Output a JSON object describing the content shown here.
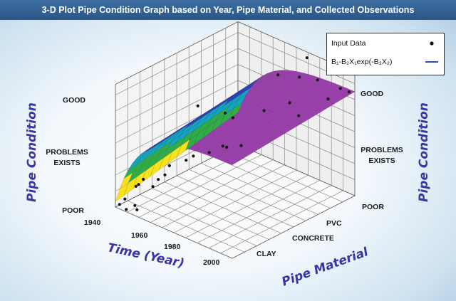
{
  "chart_data": {
    "type": "surface3d",
    "title": "3-D Plot Pipe Condition Graph based on Year, Pipe Material, and Collected Observations",
    "x_axis": {
      "label": "Time (Year)",
      "ticks": [
        "1940",
        "1960",
        "1980",
        "2000"
      ],
      "range": [
        1940,
        2010
      ]
    },
    "y_axis": {
      "label": "Pipe Material",
      "ticks": [
        "CLAY",
        "CONCRETE",
        "PVC"
      ],
      "note": "categorical"
    },
    "z_axis": {
      "label": "Pipe Condition",
      "ticks": [
        "POOR",
        "PROBLEMS EXISTS",
        "GOOD"
      ],
      "range": [
        0,
        1
      ]
    },
    "legend": {
      "placement": "top-right",
      "entries": [
        {
          "name": "Input Data",
          "marker": "dot"
        },
        {
          "name": "B₁-B₂X₁exp(-B₃X₂)",
          "marker": "line"
        }
      ]
    },
    "surface": {
      "model": "B₁-B₂X₁exp(-B₃X₂)",
      "condition_at_corners": {
        "1940_clay": 0.05,
        "1940_pvc": 0.3,
        "2010_clay": 0.88,
        "2010_pvc": 0.98
      },
      "colorscale": [
        "#d11f1f",
        "#f7e21b",
        "#2fae47",
        "#11a6c3",
        "#2a44c2",
        "#9c3fae"
      ]
    },
    "observations": [
      {
        "year": 1941,
        "material": 0.02,
        "condition": 0.02
      },
      {
        "year": 1942,
        "material": 0.05,
        "condition": 0.06
      },
      {
        "year": 1945,
        "material": 0.02,
        "condition": 0.0
      },
      {
        "year": 1948,
        "material": 0.05,
        "condition": 0.04
      },
      {
        "year": 1950,
        "material": 0.04,
        "condition": 0.02
      },
      {
        "year": 1945,
        "material": 0.1,
        "condition": 0.17
      },
      {
        "year": 1948,
        "material": 0.08,
        "condition": 0.22
      },
      {
        "year": 1953,
        "material": 0.05,
        "condition": 0.32
      },
      {
        "year": 1958,
        "material": 0.06,
        "condition": 0.28
      },
      {
        "year": 1962,
        "material": 0.05,
        "condition": 0.38
      },
      {
        "year": 1965,
        "material": 0.1,
        "condition": 0.5
      },
      {
        "year": 1966,
        "material": 0.05,
        "condition": 0.45
      },
      {
        "year": 1972,
        "material": 0.2,
        "condition": 0.58
      },
      {
        "year": 1975,
        "material": 0.1,
        "condition": 0.62
      },
      {
        "year": 1983,
        "material": 0.18,
        "condition": 0.7
      },
      {
        "year": 1986,
        "material": 0.25,
        "condition": 0.74
      },
      {
        "year": 1992,
        "material": 0.2,
        "condition": 0.8
      },
      {
        "year": 1997,
        "material": 0.25,
        "condition": 0.82
      },
      {
        "year": 1960,
        "material": 0.4,
        "condition": 0.85
      },
      {
        "year": 1980,
        "material": 0.35,
        "condition": 0.95
      },
      {
        "year": 1970,
        "material": 0.55,
        "condition": 0.72
      },
      {
        "year": 1985,
        "material": 0.6,
        "condition": 0.86
      },
      {
        "year": 1993,
        "material": 0.7,
        "condition": 0.93
      },
      {
        "year": 2002,
        "material": 0.65,
        "condition": 0.9
      },
      {
        "year": 1975,
        "material": 0.85,
        "condition": 0.98
      },
      {
        "year": 1990,
        "material": 0.82,
        "condition": 1.08
      },
      {
        "year": 1995,
        "material": 0.9,
        "condition": 1.04
      },
      {
        "year": 2005,
        "material": 0.95,
        "condition": 1.0
      },
      {
        "year": 2005,
        "material": 0.85,
        "condition": 0.96
      },
      {
        "year": 2008,
        "material": 0.98,
        "condition": 0.97
      },
      {
        "year": 2000,
        "material": 0.92,
        "condition": 1.12
      },
      {
        "year": 1985,
        "material": 0.95,
        "condition": 1.15
      }
    ]
  }
}
